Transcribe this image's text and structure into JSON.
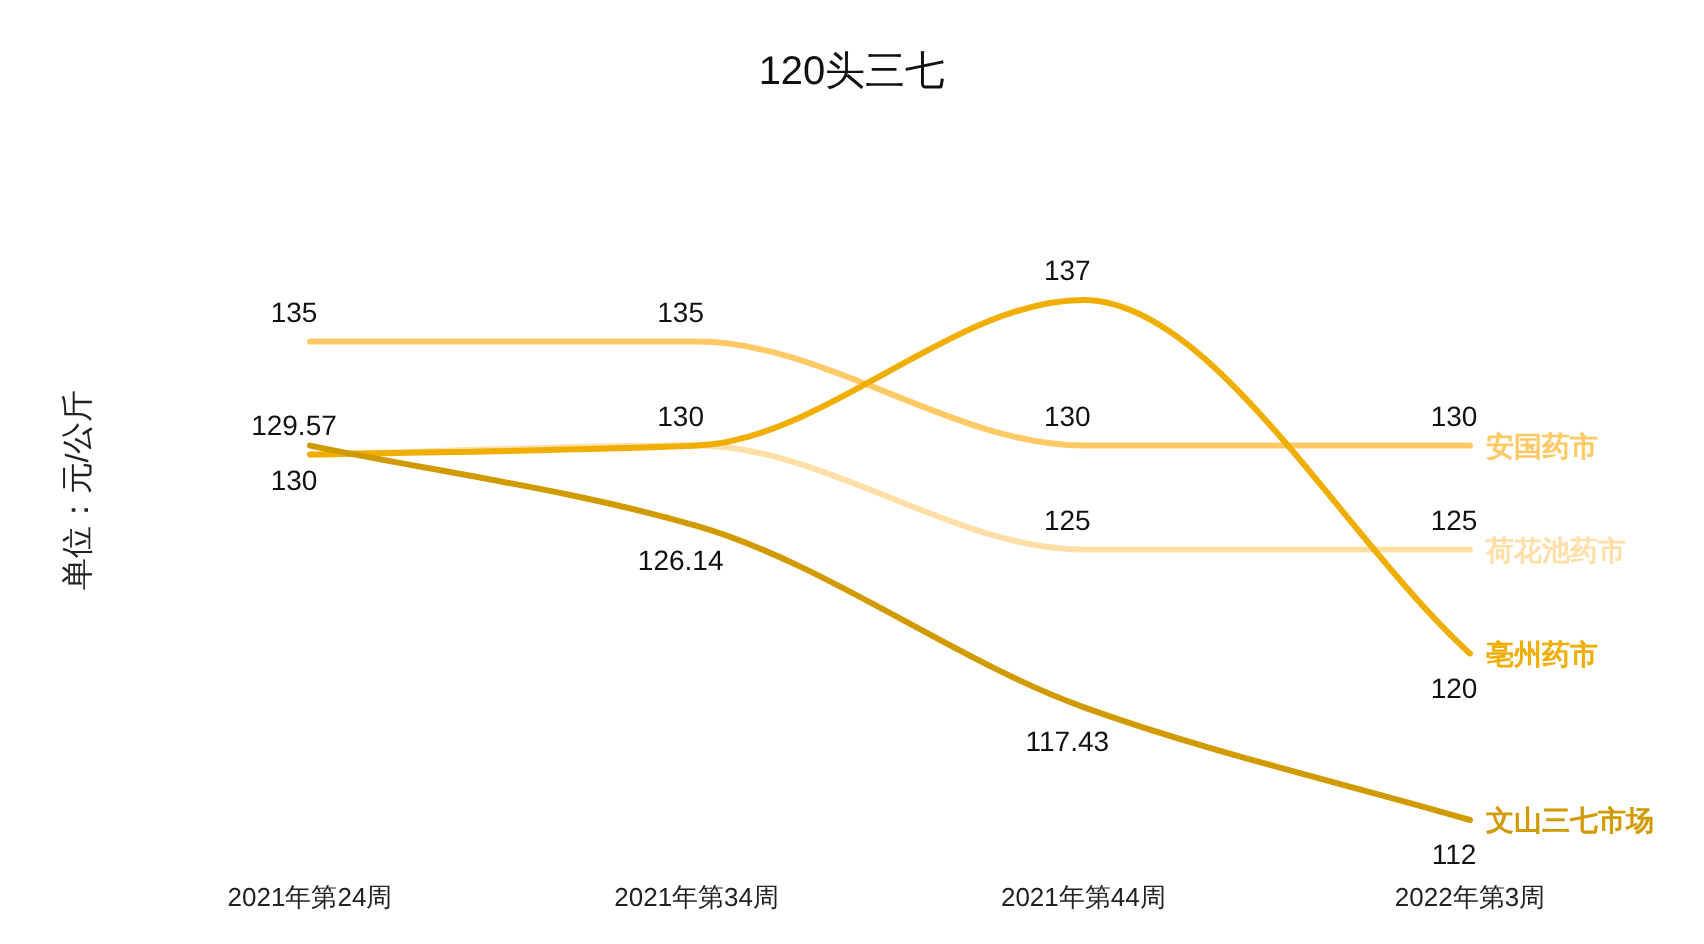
{
  "chart_data": {
    "type": "line",
    "title": "120头三七",
    "ylabel": "单位：元/公斤",
    "categories": [
      "2021年第24周",
      "2021年第34周",
      "2021年第44周",
      "2022年第3周"
    ],
    "series": [
      {
        "name": "安国药市",
        "color": "#ffc966",
        "values": [
          135,
          135,
          130,
          130
        ],
        "value_labels": [
          "135",
          "135",
          "130",
          "130"
        ]
      },
      {
        "name": "荷花池药市",
        "color": "#ffdfa8",
        "values": [
          129.57,
          130,
          125,
          125
        ],
        "value_labels": [
          null,
          null,
          "125",
          "125"
        ]
      },
      {
        "name": "亳州药市",
        "color": "#f0ae00",
        "values": [
          129.57,
          130,
          137,
          120
        ],
        "value_labels": [
          "129.57",
          "130",
          "137",
          "120"
        ]
      },
      {
        "name": "文山三七市场",
        "color": "#d19b00",
        "values": [
          130,
          126.14,
          117.43,
          112
        ],
        "value_labels": [
          "130",
          "126.14",
          "117.43",
          "112"
        ]
      }
    ],
    "marker": "none",
    "line_style": "solid"
  }
}
